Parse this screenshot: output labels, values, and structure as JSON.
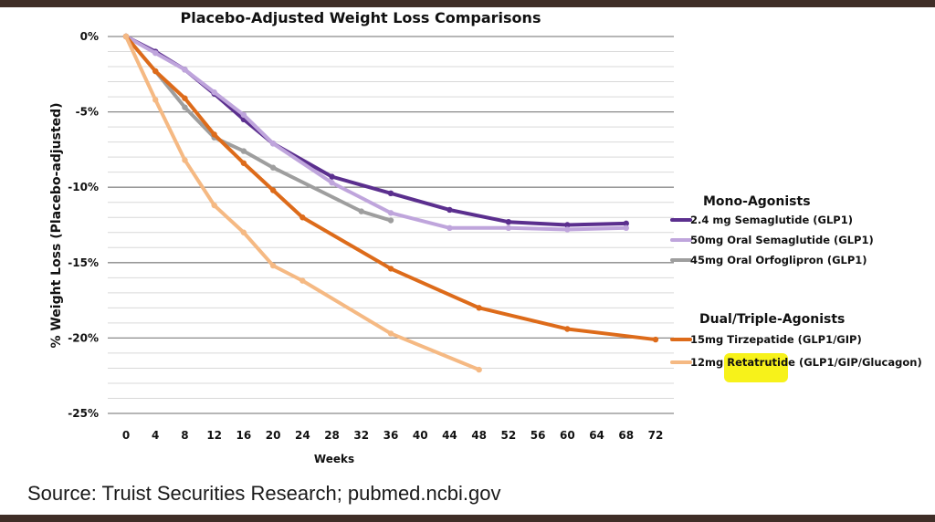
{
  "chart_data": {
    "type": "line",
    "title": "Placebo-Adjusted Weight Loss Comparisons",
    "xlabel": "Weeks",
    "ylabel": "% Weight Loss (Placebo-adjusted)",
    "xlim": [
      0,
      72
    ],
    "ylim": [
      -25,
      0
    ],
    "x_ticks": [
      0,
      4,
      8,
      12,
      16,
      20,
      24,
      28,
      32,
      36,
      40,
      44,
      48,
      52,
      56,
      60,
      64,
      68,
      72
    ],
    "y_ticks": [
      0,
      -5,
      -10,
      -15,
      -20,
      -25
    ],
    "y_tick_labels": [
      "0%",
      "-5%",
      "-10%",
      "-15%",
      "-20%",
      "-25%"
    ],
    "grid": {
      "major_every": 5,
      "minor_every": 1,
      "orientation": "horizontal"
    },
    "legend_placement": "right",
    "legend_groups": [
      {
        "heading": "Mono-Agonists",
        "series": [
          0,
          1,
          2
        ]
      },
      {
        "heading": "Dual/Triple-Agonists",
        "series": [
          3,
          4
        ]
      }
    ],
    "highlight": {
      "series": 4,
      "text": "Retatrutide",
      "color": "#f7f21a"
    },
    "series": [
      {
        "name": "2.4 mg Semaglutide (GLP1)",
        "color": "#5b2f8e",
        "x": [
          0,
          4,
          8,
          12,
          16,
          20,
          28,
          36,
          44,
          52,
          60,
          68
        ],
        "y": [
          0,
          -1.0,
          -2.2,
          -3.8,
          -5.5,
          -7.1,
          -9.3,
          -10.4,
          -11.5,
          -12.3,
          -12.5,
          -12.4
        ]
      },
      {
        "name": "50mg Oral Semaglutide (GLP1)",
        "color": "#bfa5dc",
        "x": [
          0,
          4,
          8,
          12,
          16,
          20,
          28,
          36,
          44,
          52,
          60,
          68
        ],
        "y": [
          0,
          -1.1,
          -2.2,
          -3.7,
          -5.2,
          -7.1,
          -9.7,
          -11.7,
          -12.7,
          -12.7,
          -12.8,
          -12.7
        ]
      },
      {
        "name": "45mg Oral Orfoglipron (GLP1)",
        "color": "#9e9e9e",
        "x": [
          0,
          4,
          8,
          12,
          16,
          20,
          32,
          36
        ],
        "y": [
          0,
          -2.3,
          -4.7,
          -6.7,
          -7.6,
          -8.7,
          -11.6,
          -12.2
        ]
      },
      {
        "name": "15mg Tirzepatide (GLP1/GIP)",
        "color": "#dd6b1a",
        "x": [
          0,
          4,
          8,
          12,
          16,
          20,
          24,
          36,
          48,
          60,
          72
        ],
        "y": [
          0,
          -2.3,
          -4.1,
          -6.5,
          -8.4,
          -10.2,
          -12.0,
          -15.4,
          -18.0,
          -19.4,
          -20.1
        ]
      },
      {
        "name": "12mg Retatrutide (GLP1/GIP/Glucagon)",
        "color": "#f5b983",
        "x": [
          0,
          4,
          8,
          12,
          16,
          20,
          24,
          36,
          48
        ],
        "y": [
          0,
          -4.2,
          -8.2,
          -11.2,
          -13.0,
          -15.2,
          -16.2,
          -19.7,
          -22.1
        ]
      }
    ]
  },
  "legend": {
    "group1_heading": "Mono-Agonists",
    "group2_heading": "Dual/Triple-Agonists",
    "s0": "2.4 mg Semaglutide (GLP1)",
    "s1": "50mg Oral Semaglutide (GLP1)",
    "s2": "45mg Oral Orfoglipron (GLP1)",
    "s3": "15mg Tirzepatide (GLP1/GIP)",
    "s4_prefix": "12mg ",
    "s4_highlight": "Retatrutide",
    "s4_suffix": " (GLP1/GIP/Glucagon)"
  },
  "footer": {
    "source": "Source: Truist Securities Research; pubmed.ncbi.gov"
  }
}
